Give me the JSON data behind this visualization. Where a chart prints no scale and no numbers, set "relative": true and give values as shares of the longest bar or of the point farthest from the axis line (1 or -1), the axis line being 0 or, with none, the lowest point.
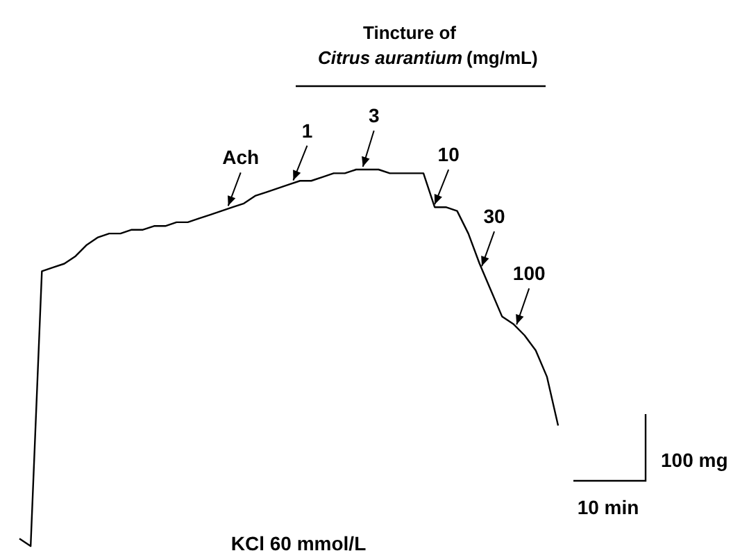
{
  "chart_data": {
    "type": "line",
    "relative": true,
    "color": "#000000",
    "categories": [
      null,
      null,
      null,
      null,
      null,
      null,
      null,
      null,
      null,
      null,
      null,
      null,
      null,
      null,
      null,
      null,
      null,
      null,
      null,
      null,
      null,
      null,
      null,
      null,
      null,
      null,
      null,
      null,
      null,
      null,
      null,
      null,
      null,
      null,
      null,
      null,
      null,
      null,
      null,
      null,
      null,
      null,
      null,
      null,
      null,
      null,
      null,
      null,
      null
    ],
    "values": [
      0.02,
      0,
      0.73,
      0.74,
      0.75,
      0.77,
      0.8,
      0.82,
      0.83,
      0.83,
      0.84,
      0.84,
      0.85,
      0.85,
      0.86,
      0.86,
      0.87,
      0.88,
      0.89,
      0.9,
      0.91,
      0.93,
      0.94,
      0.95,
      0.96,
      0.97,
      0.97,
      0.98,
      0.99,
      0.99,
      1.0,
      1.0,
      1.0,
      0.99,
      0.99,
      0.99,
      0.99,
      0.9,
      0.9,
      0.89,
      0.83,
      0.75,
      0.68,
      0.61,
      0.59,
      0.56,
      0.52,
      0.45,
      0.32
    ],
    "annotations": [
      "Tincture of",
      "Citrus aurantium",
      "(mg/mL)",
      "Ach",
      "1",
      "3",
      "10",
      "30",
      "100",
      "KCl 60 mmol/L",
      "100 mg",
      "10 min"
    ]
  }
}
